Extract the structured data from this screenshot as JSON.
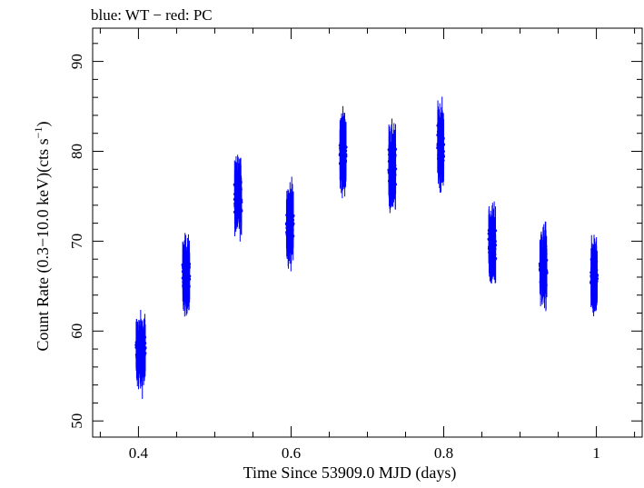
{
  "chart_data": {
    "type": "scatter",
    "title": "blue: WT − red: PC",
    "xlabel": "Time Since 53909.0 MJD (days)",
    "ylabel_main": "Count Rate (0.3−10.0 keV)(cts s",
    "ylabel_sup": "−1",
    "ylabel_close": ")",
    "xlim": [
      0.34,
      1.06
    ],
    "ylim": [
      48.2,
      93.7
    ],
    "x_ticks": [
      0.4,
      0.6,
      0.8,
      1.0
    ],
    "x_tick_labels": [
      "0.4",
      "0.6",
      "0.8",
      "1"
    ],
    "y_ticks": [
      50,
      60,
      70,
      80,
      90
    ],
    "y_tick_labels": [
      "50",
      "60",
      "70",
      "80",
      "90"
    ],
    "grid": false,
    "series": [
      {
        "color": "#0000ff",
        "error_bars": true,
        "clusters": [
          {
            "x_start": 0.397,
            "x_end": 0.409,
            "y_center": 57.6,
            "y_spread": 2.3,
            "err": 2.6
          },
          {
            "x_start": 0.458,
            "x_end": 0.467,
            "y_center": 66.2,
            "y_spread": 2.2,
            "err": 2.6
          },
          {
            "x_start": 0.526,
            "x_end": 0.535,
            "y_center": 75.0,
            "y_spread": 2.2,
            "err": 2.7
          },
          {
            "x_start": 0.594,
            "x_end": 0.603,
            "y_center": 72.0,
            "y_spread": 2.4,
            "err": 2.7
          },
          {
            "x_start": 0.664,
            "x_end": 0.672,
            "y_center": 79.9,
            "y_spread": 2.4,
            "err": 2.8
          },
          {
            "x_start": 0.728,
            "x_end": 0.737,
            "y_center": 78.1,
            "y_spread": 2.6,
            "err": 2.8
          },
          {
            "x_start": 0.792,
            "x_end": 0.8,
            "y_center": 80.7,
            "y_spread": 2.4,
            "err": 2.8
          },
          {
            "x_start": 0.859,
            "x_end": 0.868,
            "y_center": 69.5,
            "y_spread": 2.3,
            "err": 2.7
          },
          {
            "x_start": 0.926,
            "x_end": 0.935,
            "y_center": 67.2,
            "y_spread": 2.5,
            "err": 2.7
          },
          {
            "x_start": 0.993,
            "x_end": 1.001,
            "y_center": 66.0,
            "y_spread": 2.2,
            "err": 2.7
          }
        ]
      }
    ]
  }
}
